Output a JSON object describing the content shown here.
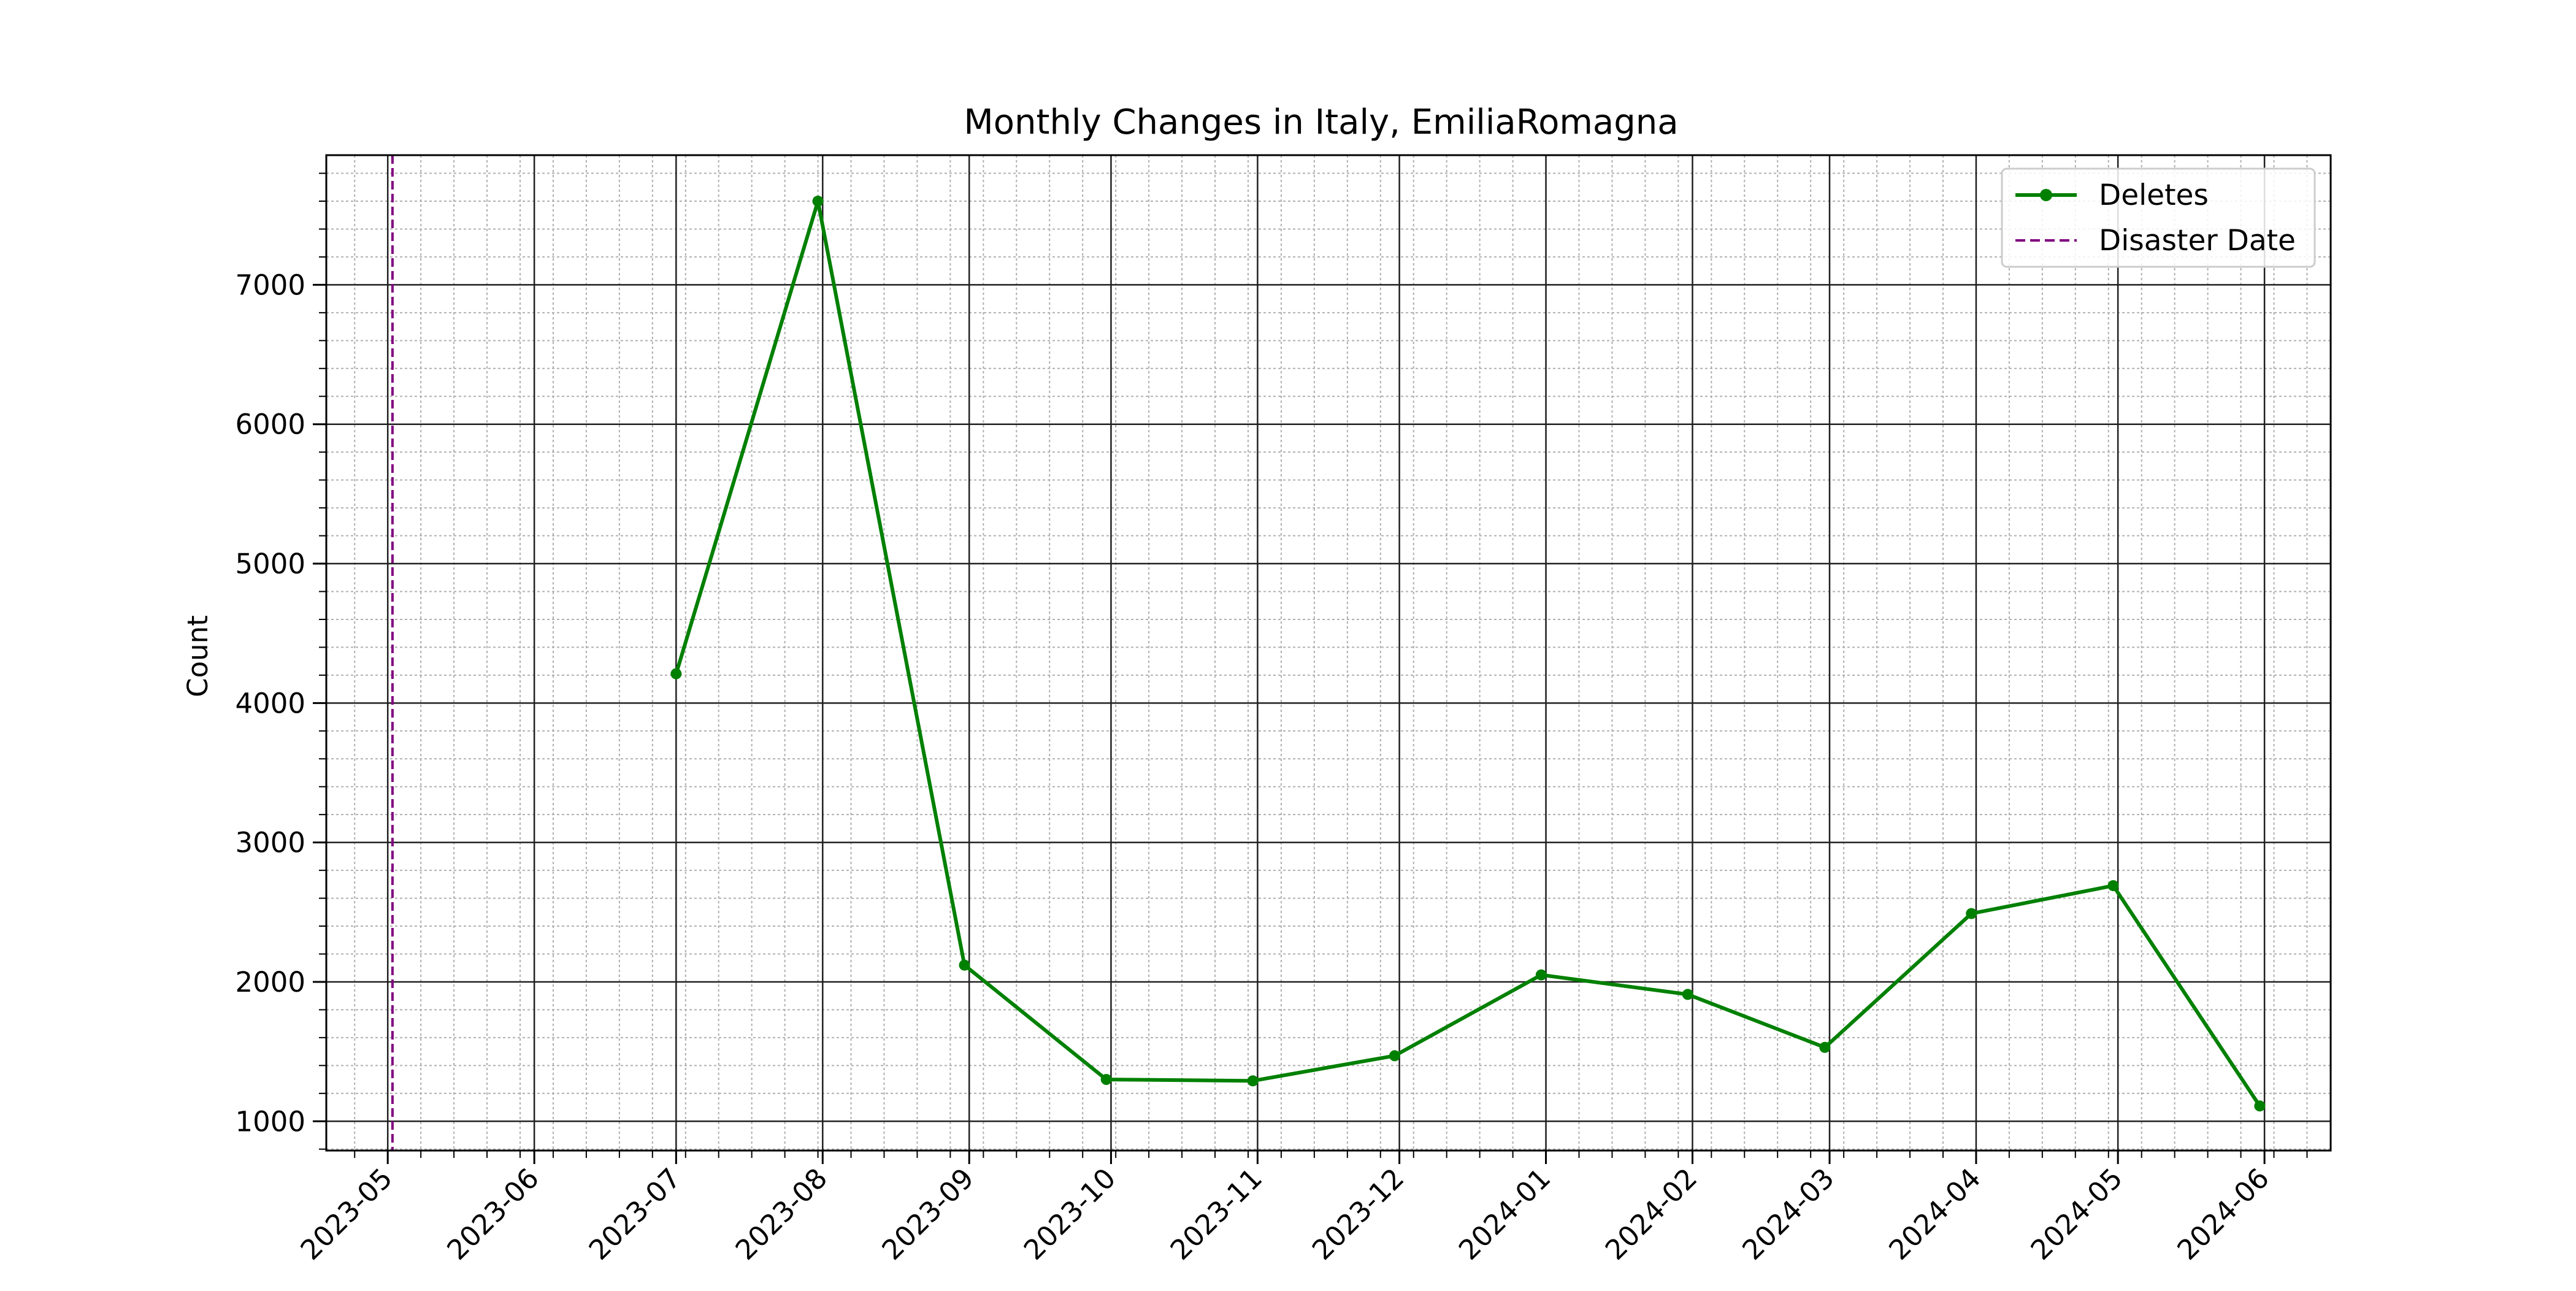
{
  "chart_data": {
    "type": "line",
    "title": "Monthly Changes in Italy, EmiliaRomagna",
    "xlabel": "",
    "ylabel": "Count",
    "x_tick_labels": [
      "2023-05",
      "2023-06",
      "2023-07",
      "2023-08",
      "2023-09",
      "2023-10",
      "2023-11",
      "2023-12",
      "2024-01",
      "2024-02",
      "2024-03",
      "2024-04",
      "2024-05",
      "2024-06"
    ],
    "x_ticks": [
      "2023-05-01",
      "2023-06-01",
      "2023-07-01",
      "2023-08-01",
      "2023-09-01",
      "2023-10-01",
      "2023-11-01",
      "2023-12-01",
      "2024-01-01",
      "2024-02-01",
      "2024-03-01",
      "2024-04-01",
      "2024-05-01",
      "2024-06-01"
    ],
    "y_ticks": [
      1000,
      2000,
      3000,
      4000,
      5000,
      6000,
      7000
    ],
    "xlim": [
      "2023-04-18",
      "2024-06-15"
    ],
    "ylim": [
      790,
      7930
    ],
    "grid": true,
    "minor_grid": true,
    "legend": "top-right",
    "series": [
      {
        "name": "Deletes",
        "color": "#008000",
        "marker": "circle",
        "points": [
          {
            "x": "2023-07-01",
            "y": 4210
          },
          {
            "x": "2023-07-31",
            "y": 7600
          },
          {
            "x": "2023-08-31",
            "y": 2120
          },
          {
            "x": "2023-09-30",
            "y": 1300
          },
          {
            "x": "2023-10-31",
            "y": 1290
          },
          {
            "x": "2023-11-30",
            "y": 1470
          },
          {
            "x": "2023-12-31",
            "y": 2050
          },
          {
            "x": "2024-01-31",
            "y": 1910
          },
          {
            "x": "2024-02-29",
            "y": 1530
          },
          {
            "x": "2024-03-31",
            "y": 2490
          },
          {
            "x": "2024-04-30",
            "y": 2690
          },
          {
            "x": "2024-05-31",
            "y": 1110
          }
        ]
      }
    ],
    "vlines": [
      {
        "name": "Disaster Date",
        "x": "2023-05-02",
        "color": "#800080",
        "style": "dashed"
      }
    ]
  }
}
